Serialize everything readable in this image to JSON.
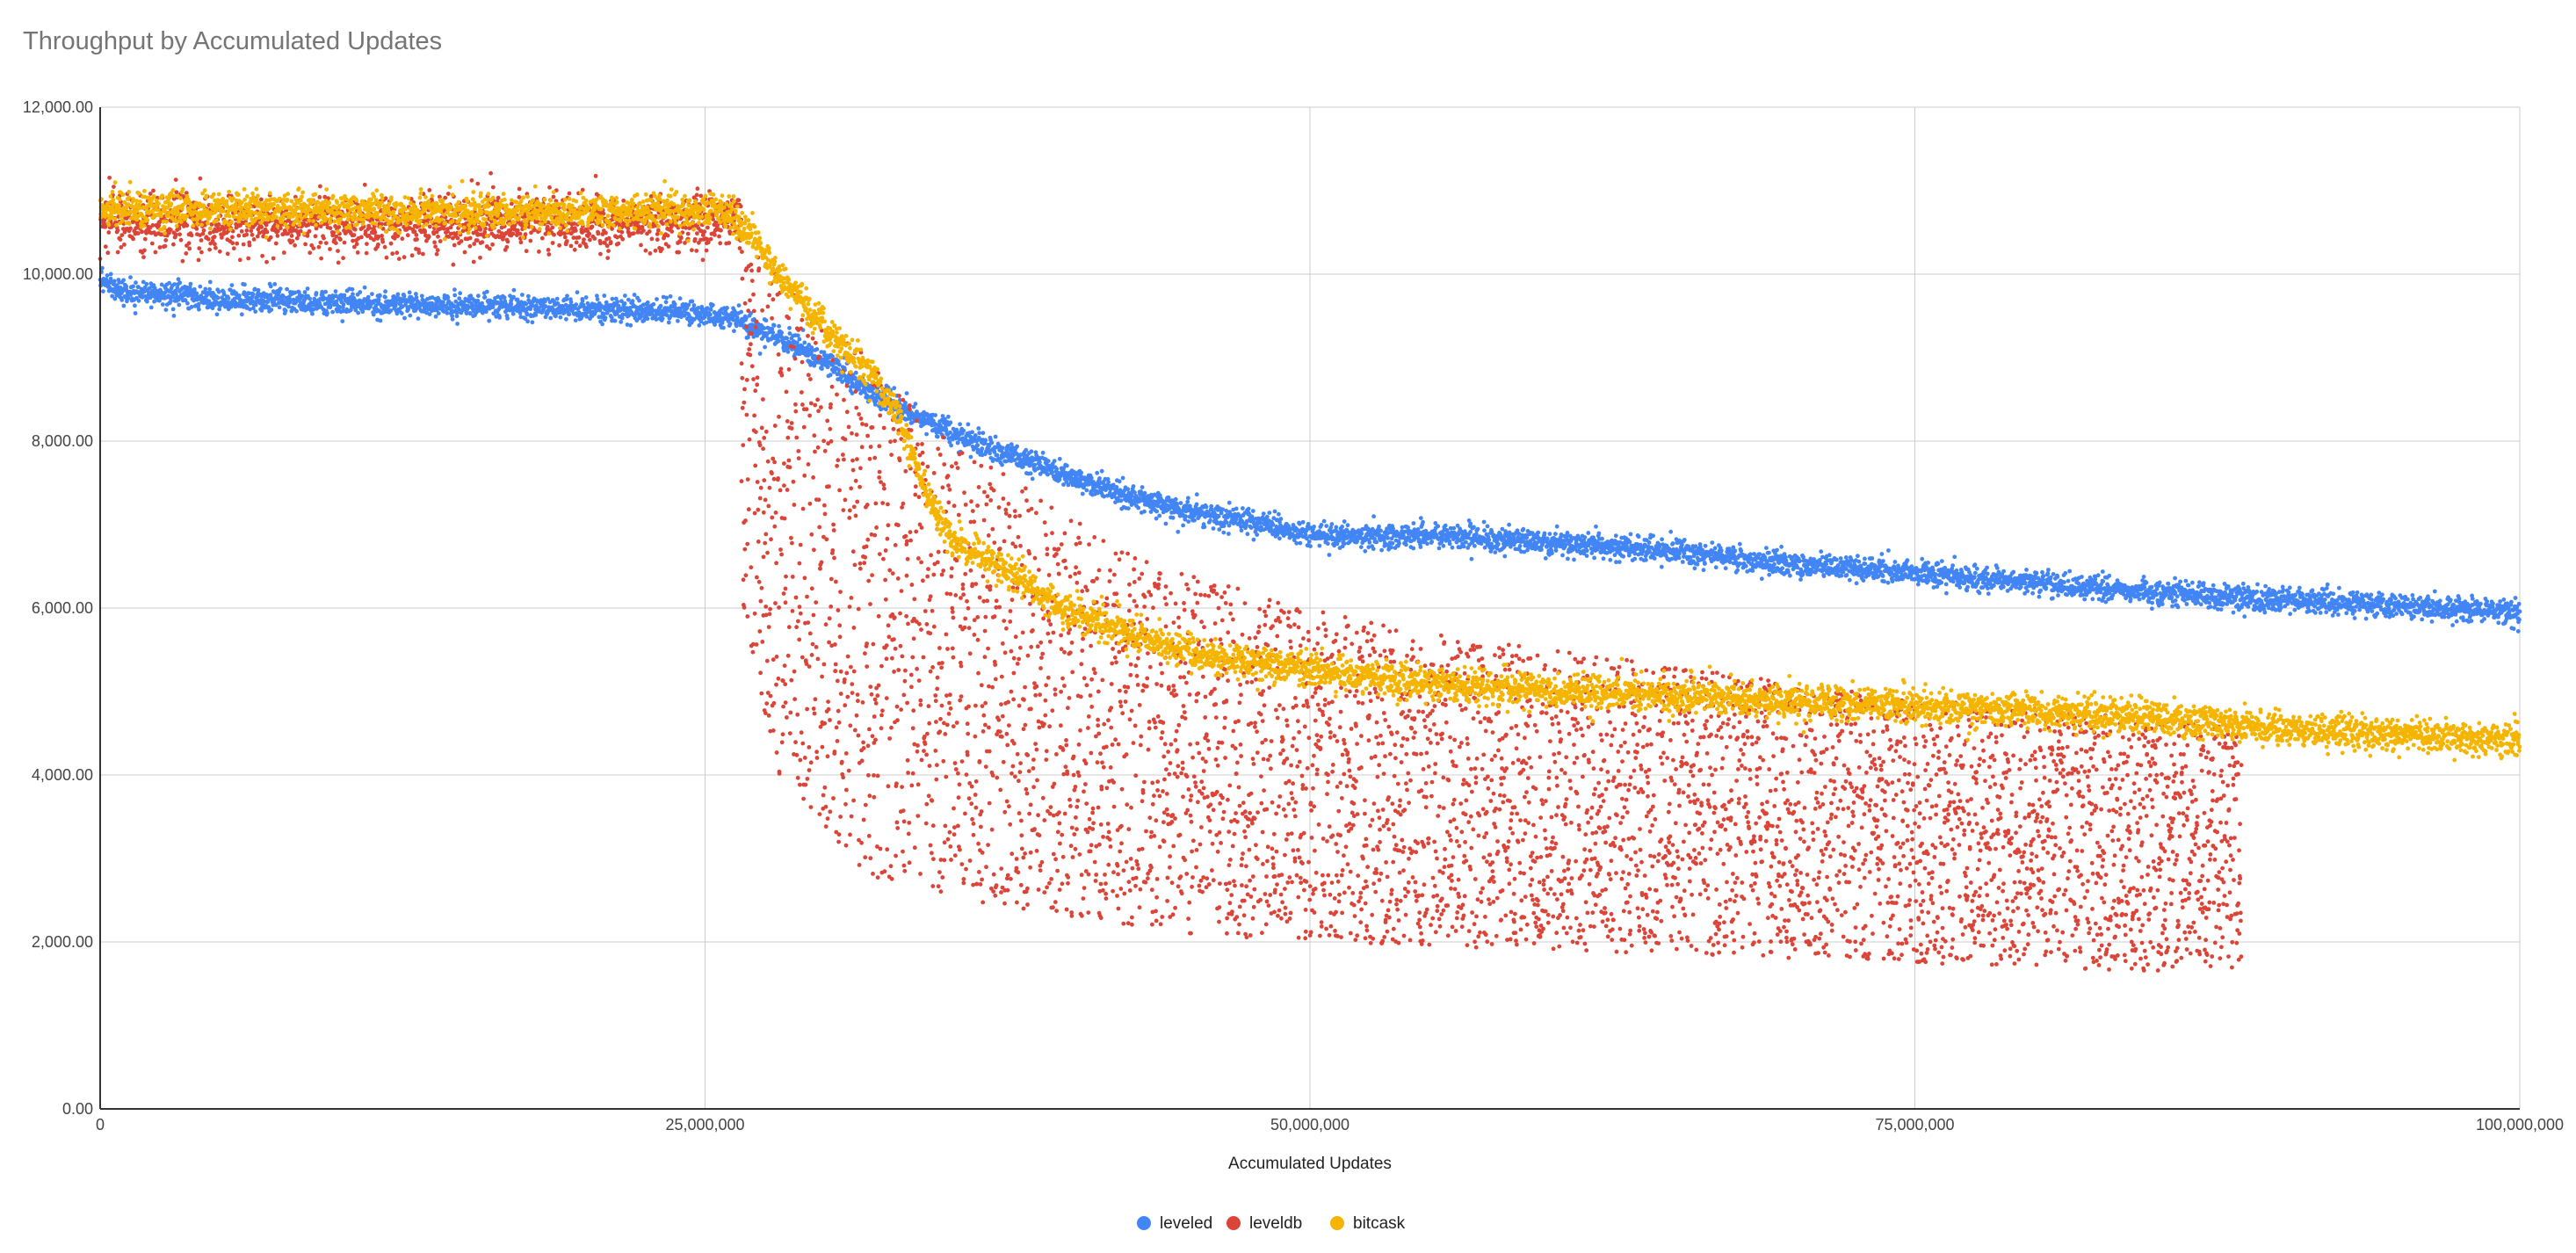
{
  "chart_data": {
    "type": "scatter",
    "title": "Throughput by Accumulated Updates",
    "xlabel": "Accumulated Updates",
    "ylabel": "",
    "xlim": [
      0,
      100000000
    ],
    "ylim": [
      0,
      12000
    ],
    "x_ticks": [
      0,
      25000000,
      50000000,
      75000000,
      100000000
    ],
    "x_tick_labels": [
      "0",
      "25,000,000",
      "50,000,000",
      "75,000,000",
      "100,000,000"
    ],
    "y_ticks": [
      0,
      2000,
      4000,
      6000,
      8000,
      10000,
      12000
    ],
    "y_tick_labels": [
      "0.00",
      "2,000.00",
      "4,000.00",
      "6,000.00",
      "8,000.00",
      "10,000.00",
      "12,000.00"
    ],
    "grid": true,
    "legend_position": "bottom",
    "series": [
      {
        "name": "leveled",
        "color": "#4285f4",
        "x_range": [
          0,
          100000000
        ],
        "trend": [
          [
            0,
            9900
          ],
          [
            1000000,
            9800
          ],
          [
            5000000,
            9700
          ],
          [
            10000000,
            9650
          ],
          [
            15000000,
            9620
          ],
          [
            20000000,
            9580
          ],
          [
            24000000,
            9550
          ],
          [
            26000000,
            9480
          ],
          [
            28000000,
            9250
          ],
          [
            30000000,
            8950
          ],
          [
            32000000,
            8550
          ],
          [
            34000000,
            8250
          ],
          [
            36000000,
            8000
          ],
          [
            38000000,
            7800
          ],
          [
            40000000,
            7580
          ],
          [
            42000000,
            7380
          ],
          [
            44000000,
            7230
          ],
          [
            46000000,
            7100
          ],
          [
            48000000,
            7000
          ],
          [
            50000000,
            6900
          ],
          [
            52000000,
            6850
          ],
          [
            55000000,
            6880
          ],
          [
            60000000,
            6780
          ],
          [
            65000000,
            6680
          ],
          [
            70000000,
            6530
          ],
          [
            75000000,
            6420
          ],
          [
            80000000,
            6300
          ],
          [
            85000000,
            6180
          ],
          [
            90000000,
            6100
          ],
          [
            95000000,
            6030
          ],
          [
            100000000,
            5950
          ]
        ],
        "spread": 70
      },
      {
        "name": "leveldb",
        "color": "#db4437",
        "x_range": [
          0,
          88500000
        ],
        "stable_segment": {
          "x_range": [
            0,
            26500000
          ],
          "trend": [
            [
              0,
              10650
            ],
            [
              5000000,
              10600
            ],
            [
              10000000,
              10600
            ],
            [
              15000000,
              10620
            ],
            [
              20000000,
              10600
            ],
            [
              26500000,
              10650
            ]
          ],
          "spread": 170
        },
        "scattered_segment": {
          "x_range": [
            26500000,
            88500000
          ],
          "upper_band": [
            [
              26500000,
              10400
            ],
            [
              30000000,
              9500
            ],
            [
              32000000,
              8900
            ],
            [
              35000000,
              8000
            ],
            [
              38000000,
              7500
            ],
            [
              40000000,
              7100
            ],
            [
              45000000,
              6400
            ],
            [
              50000000,
              6000
            ],
            [
              55000000,
              5700
            ],
            [
              60000000,
              5500
            ],
            [
              65000000,
              5300
            ],
            [
              70000000,
              5100
            ],
            [
              75000000,
              4900
            ],
            [
              80000000,
              4800
            ],
            [
              85000000,
              4650
            ],
            [
              88500000,
              4600
            ]
          ],
          "lower_band": [
            [
              26500000,
              6000
            ],
            [
              28000000,
              4000
            ],
            [
              30000000,
              3300
            ],
            [
              32000000,
              2700
            ],
            [
              35000000,
              2500
            ],
            [
              40000000,
              2300
            ],
            [
              45000000,
              2100
            ],
            [
              50000000,
              2000
            ],
            [
              55000000,
              1950
            ],
            [
              60000000,
              1900
            ],
            [
              65000000,
              1850
            ],
            [
              70000000,
              1800
            ],
            [
              75000000,
              1750
            ],
            [
              80000000,
              1700
            ],
            [
              85000000,
              1650
            ],
            [
              88500000,
              1700
            ]
          ]
        }
      },
      {
        "name": "bitcask",
        "color": "#f4b400",
        "x_range": [
          0,
          100000000
        ],
        "trend": [
          [
            0,
            10800
          ],
          [
            5000000,
            10780
          ],
          [
            10000000,
            10760
          ],
          [
            15000000,
            10750
          ],
          [
            20000000,
            10740
          ],
          [
            26000000,
            10750
          ],
          [
            27000000,
            10450
          ],
          [
            28000000,
            10000
          ],
          [
            30000000,
            9350
          ],
          [
            32000000,
            8750
          ],
          [
            33000000,
            8300
          ],
          [
            34000000,
            7500
          ],
          [
            35000000,
            6900
          ],
          [
            36000000,
            6700
          ],
          [
            38000000,
            6350
          ],
          [
            40000000,
            5950
          ],
          [
            43000000,
            5650
          ],
          [
            46000000,
            5400
          ],
          [
            50000000,
            5250
          ],
          [
            55000000,
            5100
          ],
          [
            60000000,
            5000
          ],
          [
            65000000,
            4950
          ],
          [
            70000000,
            4880
          ],
          [
            75000000,
            4820
          ],
          [
            80000000,
            4760
          ],
          [
            85000000,
            4680
          ],
          [
            90000000,
            4560
          ],
          [
            95000000,
            4480
          ],
          [
            100000000,
            4430
          ]
        ],
        "spread": 100
      }
    ]
  }
}
